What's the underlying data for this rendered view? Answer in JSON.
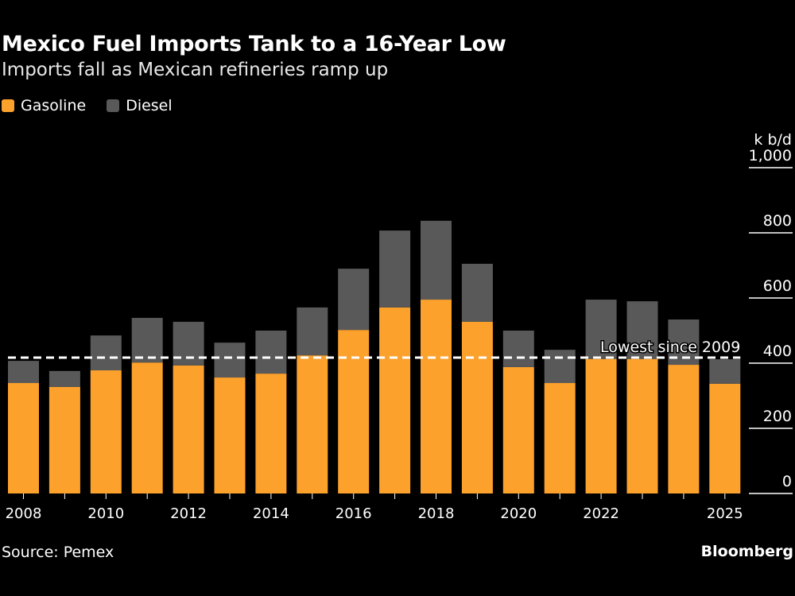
{
  "title": "Mexico Fuel Imports Tank to a 16-Year Low",
  "subtitle": "Imports fall as Mexican refineries ramp up",
  "source": "Source: Pemex",
  "brand": "Bloomberg",
  "colors": {
    "gasoline": "#fca12c",
    "diesel": "#595959",
    "background": "#000000"
  },
  "chart_data": {
    "type": "bar",
    "stacked": true,
    "title": "Mexico Fuel Imports Tank to a 16-Year Low",
    "subtitle": "Imports fall as Mexican refineries ramp up",
    "ylabel": "k b/d",
    "ylim": [
      0,
      1000
    ],
    "yticks": [
      0,
      200,
      400,
      600,
      800,
      1000
    ],
    "ytick_labels": [
      "0",
      "200",
      "400",
      "600",
      "800",
      "1,000"
    ],
    "x_tick_labels": [
      "2008",
      "2010",
      "2012",
      "2014",
      "2016",
      "2018",
      "2020",
      "2022",
      "2025"
    ],
    "legend_position": "top-left",
    "categories": [
      "2008",
      "2009",
      "2010",
      "2011",
      "2012",
      "2013",
      "2014",
      "2015",
      "2016",
      "2017",
      "2018",
      "2019",
      "2020",
      "2021",
      "2022",
      "2023",
      "2024",
      "2025"
    ],
    "series": [
      {
        "name": "Gasoline",
        "values": [
          339,
          327,
          378,
          402,
          393,
          356,
          368,
          424,
          502,
          571,
          595,
          527,
          388,
          339,
          413,
          413,
          395,
          337
        ]
      },
      {
        "name": "Diesel",
        "values": [
          68,
          49,
          107,
          137,
          134,
          107,
          132,
          147,
          188,
          236,
          242,
          178,
          112,
          102,
          182,
          177,
          139,
          75
        ]
      }
    ],
    "annotation": {
      "text": "Lowest since 2009",
      "value": 417
    }
  }
}
